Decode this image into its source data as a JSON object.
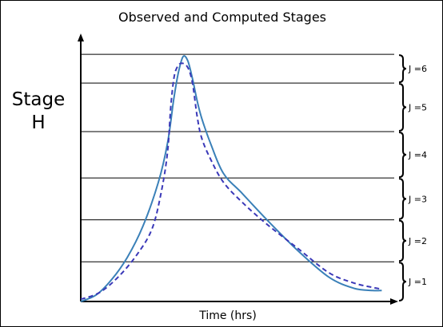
{
  "chart_data": {
    "type": "line",
    "title": "Observed and Computed Stages",
    "ylabel": [
      "Stage",
      "H"
    ],
    "xlabel": "Time (hrs)",
    "ylim": [
      0,
      6
    ],
    "xlim": [
      0,
      10
    ],
    "band_labels": [
      "J =1",
      "J =2",
      "J =3",
      "J =4",
      "J =5",
      "J =6"
    ],
    "band_boundaries": [
      0,
      0.9,
      1.85,
      2.8,
      3.85,
      4.95,
      5.6
    ],
    "series": [
      {
        "style": "solid",
        "color": "#3a80b8",
        "x": [
          0.0,
          0.5,
          1.0,
          1.5,
          2.0,
          2.5,
          2.8,
          3.0,
          3.15,
          3.3,
          3.45,
          3.6,
          3.75,
          3.9,
          4.2,
          4.6,
          5.2,
          6.0,
          7.0,
          8.0,
          8.8,
          9.4,
          9.7
        ],
        "y": [
          0.0,
          0.15,
          0.5,
          1.0,
          1.7,
          2.7,
          3.6,
          4.6,
          5.2,
          5.55,
          5.45,
          5.05,
          4.55,
          4.15,
          3.55,
          2.9,
          2.45,
          1.85,
          1.15,
          0.55,
          0.3,
          0.25,
          0.25
        ]
      },
      {
        "style": "dashed",
        "color": "#3a38b8",
        "x": [
          0.0,
          0.6,
          1.2,
          1.8,
          2.3,
          2.6,
          2.8,
          2.9,
          3.0,
          3.1,
          3.25,
          3.45,
          3.6,
          3.75,
          3.9,
          4.2,
          4.6,
          5.2,
          6.0,
          7.0,
          8.0,
          8.8,
          9.4,
          9.7
        ],
        "y": [
          0.05,
          0.2,
          0.55,
          1.05,
          1.65,
          2.5,
          3.4,
          4.4,
          5.05,
          5.3,
          5.4,
          5.3,
          4.95,
          4.2,
          3.7,
          3.2,
          2.7,
          2.25,
          1.75,
          1.2,
          0.65,
          0.42,
          0.32,
          0.28
        ]
      }
    ],
    "grid": "horizontal at band boundaries",
    "legend": "none"
  }
}
